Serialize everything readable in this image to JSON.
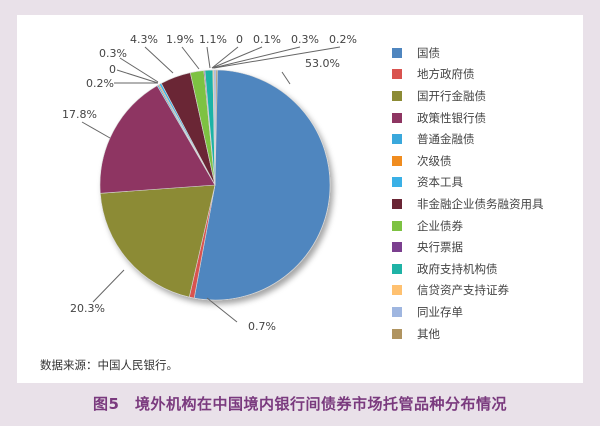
{
  "chart_data": {
    "type": "pie",
    "title": "图5　境外机构在中国境内银行间债券市场托管品种分布情况",
    "source": "数据来源：中国人民银行。",
    "legend_position": "right",
    "slices": [
      {
        "name": "国债",
        "value": 53.0,
        "label": "53.0%",
        "color": "#4f86bf"
      },
      {
        "name": "地方政府债",
        "value": 0.7,
        "label": "0.7%",
        "color": "#d9534f"
      },
      {
        "name": "国开行金融债",
        "value": 20.3,
        "label": "20.3%",
        "color": "#8c8b35"
      },
      {
        "name": "政策性银行债",
        "value": 17.8,
        "label": "17.8%",
        "color": "#8e3562"
      },
      {
        "name": "普通金融债",
        "value": 0.2,
        "label": "0.2%",
        "color": "#3aa8dc"
      },
      {
        "name": "次级债",
        "value": 0,
        "label": "0",
        "color": "#f08c1f"
      },
      {
        "name": "资本工具",
        "value": 0.3,
        "label": "0.3%",
        "color": "#3ab0e6"
      },
      {
        "name": "非金融企业债务融资用具",
        "value": 4.3,
        "label": "4.3%",
        "color": "#6a2535"
      },
      {
        "name": "企业债券",
        "value": 1.9,
        "label": "1.9%",
        "color": "#7dc242"
      },
      {
        "name": "央行票据",
        "value": 0,
        "label": "0",
        "color": "#7b3f8f"
      },
      {
        "name": "政府支持机构债",
        "value": 1.1,
        "label": "1.1%",
        "color": "#1fb3a6"
      },
      {
        "name": "信贷资产支持证券",
        "value": 0.1,
        "label": "0.1%",
        "color": "#ffc170"
      },
      {
        "name": "同业存单",
        "value": 0.3,
        "label": "0.3%",
        "color": "#9fb6e0"
      },
      {
        "name": "其他",
        "value": 0.2,
        "label": "0.2%",
        "color": "#b09460"
      }
    ]
  },
  "legend": {
    "items": [
      {
        "label": "国债",
        "color": "#4f86bf"
      },
      {
        "label": "地方政府债",
        "color": "#d9534f"
      },
      {
        "label": "国开行金融债",
        "color": "#8c8b35"
      },
      {
        "label": "政策性银行债",
        "color": "#8e3562"
      },
      {
        "label": "普通金融债",
        "color": "#3aa8dc"
      },
      {
        "label": "次级债",
        "color": "#f08c1f"
      },
      {
        "label": "资本工具",
        "color": "#3ab0e6"
      },
      {
        "label": "非金融企业债务融资用具",
        "color": "#6a2535"
      },
      {
        "label": "企业债券",
        "color": "#7dc242"
      },
      {
        "label": "央行票据",
        "color": "#7b3f8f"
      },
      {
        "label": "政府支持机构债",
        "color": "#1fb3a6"
      },
      {
        "label": "信贷资产支持证券",
        "color": "#ffc170"
      },
      {
        "label": "同业存单",
        "color": "#9fb6e0"
      },
      {
        "label": "其他",
        "color": "#b09460"
      }
    ]
  },
  "labels": {
    "top": [
      "4.3%",
      "1.9%",
      "1.1%",
      "0",
      "0.1%",
      "0.3%",
      "0.2%"
    ],
    "left": [
      "0.3%",
      "0",
      "0.2%",
      "17.8%",
      "20.3%"
    ],
    "right": [
      "53.0%",
      "0.7%"
    ]
  },
  "footer": {
    "source": "数据来源：中国人民银行。",
    "caption": "图5　境外机构在中国境内银行间债券市场托管品种分布情况"
  }
}
